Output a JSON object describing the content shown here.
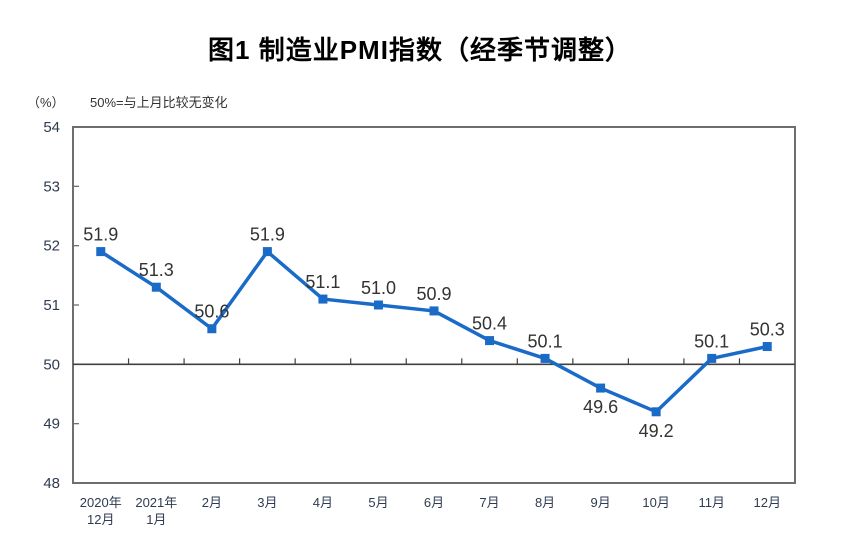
{
  "chart_data": {
    "type": "line",
    "title": "图1 制造业PMI指数（经季节调整）",
    "unit_label": "（%）",
    "reference_note": "50%=与上月比较无变化",
    "categories": [
      [
        "2020年",
        "12月"
      ],
      [
        "2021年",
        "1月"
      ],
      [
        "2月"
      ],
      [
        "3月"
      ],
      [
        "4月"
      ],
      [
        "5月"
      ],
      [
        "6月"
      ],
      [
        "7月"
      ],
      [
        "8月"
      ],
      [
        "9月"
      ],
      [
        "10月"
      ],
      [
        "11月"
      ],
      [
        "12月"
      ]
    ],
    "values": [
      51.9,
      51.3,
      50.6,
      51.9,
      51.1,
      51.0,
      50.9,
      50.4,
      50.1,
      49.6,
      49.2,
      50.1,
      50.3
    ],
    "labels": [
      "51.9",
      "51.3",
      "50.6",
      "51.9",
      "51.1",
      "51.0",
      "50.9",
      "50.4",
      "50.1",
      "49.6",
      "49.2",
      "50.1",
      "50.3"
    ],
    "label_positions": [
      "above",
      "above",
      "above",
      "above",
      "above",
      "above",
      "above",
      "above",
      "above",
      "below",
      "below",
      "above",
      "above"
    ],
    "xlabel": "",
    "ylabel": "%",
    "ylim": [
      48,
      54
    ],
    "yticks": [
      48,
      49,
      50,
      51,
      52,
      53,
      54
    ],
    "reference_value": 50,
    "grid": false,
    "legend": "none",
    "colors": {
      "line": "#1A6AC8",
      "marker": "#1A6AC8",
      "frame": "#6E6E6E",
      "reference_line": "#404040",
      "axis_text": "#2F3B52",
      "data_label": "#333333",
      "title": "#000000",
      "background": "#FFFFFF"
    }
  }
}
